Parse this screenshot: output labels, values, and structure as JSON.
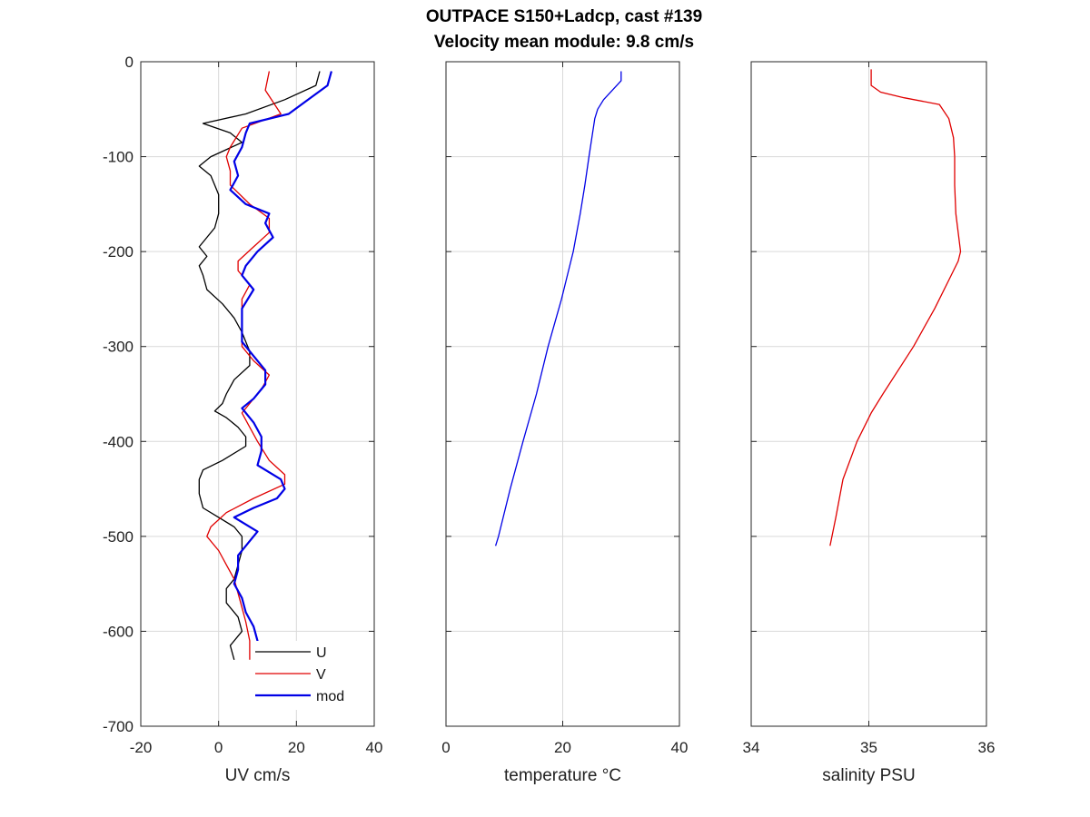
{
  "title": {
    "line1": "OUTPACE S150+Ladcp, cast #139",
    "line2": "Velocity mean module:  9.8 cm/s"
  },
  "colors": {
    "U": "#000000",
    "V": "#e00000",
    "mod": "#0000e6",
    "temperature": "#0000e6",
    "salinity": "#e00000",
    "grid": "#d9d9d9"
  },
  "chart_data": [
    {
      "type": "line",
      "xlabel": "UV cm/s",
      "ylabel": "",
      "xlim": [
        -20,
        40
      ],
      "ylim": [
        -700,
        0
      ],
      "xticks": [
        -20,
        0,
        20,
        40
      ],
      "yticks": [
        -700,
        -600,
        -500,
        -400,
        -300,
        -200,
        -100,
        0
      ],
      "grid": true,
      "legend": "bottom-right",
      "series": [
        {
          "name": "U",
          "color": "#000000",
          "width": 1.3,
          "depth": [
            -10,
            -25,
            -40,
            -55,
            -65,
            -75,
            -85,
            -100,
            -110,
            -120,
            -140,
            -160,
            -175,
            -185,
            -195,
            -205,
            -215,
            -225,
            -240,
            -255,
            -270,
            -285,
            -295,
            -305,
            -320,
            -335,
            -350,
            -360,
            -368,
            -375,
            -385,
            -395,
            -405,
            -420,
            -430,
            -440,
            -455,
            -470,
            -480,
            -490,
            -500,
            -515,
            -530,
            -545,
            -555,
            -570,
            -585,
            -600,
            -615,
            -630
          ],
          "values": [
            26,
            25,
            17,
            7,
            -4,
            3,
            6,
            -2,
            -5,
            -2,
            0,
            0,
            -1,
            -3,
            -5,
            -3,
            -5,
            -4,
            -3,
            1,
            4,
            6,
            7,
            8,
            8,
            4,
            2,
            1,
            -1,
            2,
            5,
            7,
            7,
            1,
            -4,
            -5,
            -5,
            -4,
            0,
            4,
            6,
            6,
            5,
            4,
            2,
            2,
            5,
            6,
            3,
            4
          ]
        },
        {
          "name": "V",
          "color": "#e00000",
          "width": 1.3,
          "depth": [
            -10,
            -30,
            -55,
            -70,
            -90,
            -100,
            -115,
            -130,
            -150,
            -165,
            -180,
            -195,
            -210,
            -220,
            -235,
            -250,
            -270,
            -285,
            -300,
            -315,
            -330,
            -345,
            -360,
            -370,
            -385,
            -400,
            -420,
            -435,
            -445,
            -460,
            -475,
            -490,
            -500,
            -515,
            -530,
            -545,
            -560,
            -575,
            -590,
            -610,
            -630
          ],
          "values": [
            13,
            12,
            16,
            6,
            3,
            2,
            3,
            3,
            8,
            13,
            13,
            9,
            5,
            5,
            8,
            6,
            6,
            6,
            6,
            9,
            13,
            11,
            8,
            6,
            8,
            10,
            13,
            17,
            17,
            9,
            2,
            -2,
            -3,
            0,
            2,
            4,
            5,
            6,
            7,
            8,
            8
          ]
        },
        {
          "name": "mod",
          "color": "#0000e6",
          "width": 2.2,
          "depth": [
            -10,
            -25,
            -40,
            -55,
            -65,
            -75,
            -90,
            -105,
            -120,
            -135,
            -150,
            -160,
            -170,
            -185,
            -200,
            -215,
            -225,
            -240,
            -260,
            -280,
            -295,
            -310,
            -325,
            -340,
            -355,
            -365,
            -380,
            -395,
            -410,
            -425,
            -440,
            -450,
            -460,
            -470,
            -480,
            -495,
            -505,
            -520,
            -535,
            -550,
            -565,
            -580,
            -595,
            -610,
            -630
          ],
          "values": [
            29,
            28,
            23,
            18,
            8,
            7,
            6,
            4,
            5,
            3,
            7,
            13,
            12,
            14,
            10,
            7,
            6,
            9,
            6,
            6,
            6,
            9,
            12,
            12,
            9,
            6,
            9,
            11,
            11,
            10,
            16,
            17,
            15,
            9,
            4,
            10,
            8,
            5,
            5,
            4,
            6,
            7,
            9,
            10,
            10
          ]
        }
      ]
    },
    {
      "type": "line",
      "xlabel": "temperature °C",
      "ylabel": "",
      "xlim": [
        0,
        40
      ],
      "ylim": [
        -700,
        0
      ],
      "xticks": [
        0,
        20,
        40
      ],
      "grid": true,
      "series": [
        {
          "name": "temperature",
          "color": "#0000e6",
          "width": 1.3,
          "depth": [
            -10,
            -20,
            -30,
            -40,
            -50,
            -60,
            -80,
            -100,
            -130,
            -160,
            -200,
            -250,
            -300,
            -350,
            -400,
            -450,
            -500,
            -510
          ],
          "values": [
            30,
            30,
            28.5,
            27,
            26,
            25.5,
            25,
            24.5,
            23.8,
            23,
            21.8,
            19.8,
            17.5,
            15.5,
            13.2,
            11,
            9,
            8.5
          ]
        }
      ]
    },
    {
      "type": "line",
      "xlabel": "salinity PSU",
      "ylabel": "",
      "xlim": [
        34,
        36
      ],
      "ylim": [
        -700,
        0
      ],
      "xticks": [
        34,
        35,
        36
      ],
      "grid": true,
      "series": [
        {
          "name": "salinity",
          "color": "#e00000",
          "width": 1.3,
          "depth": [
            -8,
            -25,
            -32,
            -38,
            -45,
            -60,
            -80,
            -100,
            -130,
            -160,
            -180,
            -200,
            -210,
            -230,
            -260,
            -300,
            -350,
            -370,
            -400,
            -440,
            -480,
            -510
          ],
          "values": [
            35.02,
            35.02,
            35.1,
            35.3,
            35.6,
            35.68,
            35.72,
            35.73,
            35.73,
            35.74,
            35.76,
            35.78,
            35.76,
            35.68,
            35.56,
            35.38,
            35.12,
            35.02,
            34.9,
            34.78,
            34.72,
            34.67
          ]
        }
      ]
    }
  ]
}
